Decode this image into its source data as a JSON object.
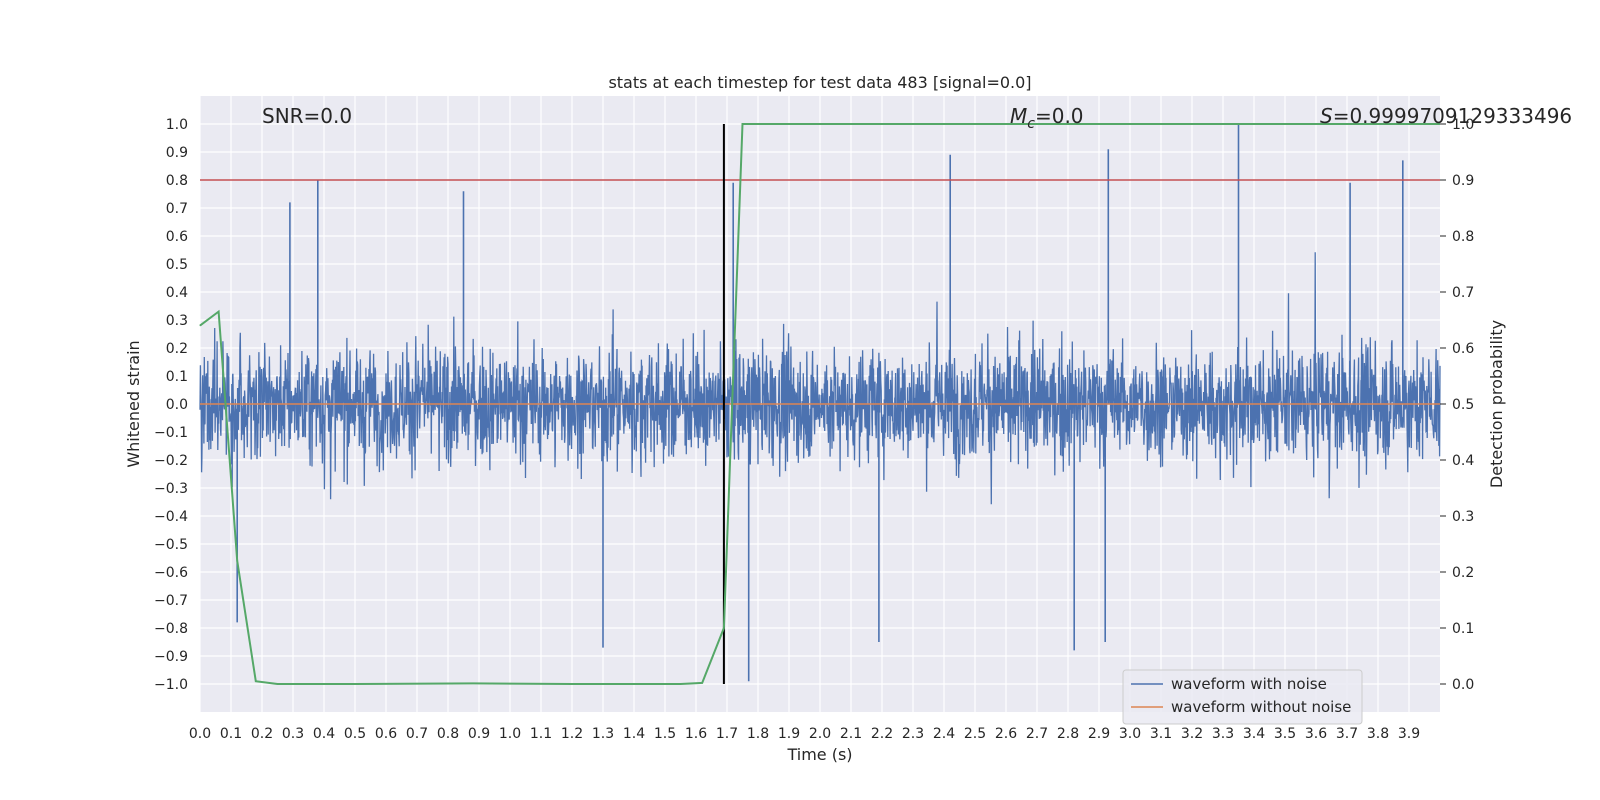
{
  "chart_data": {
    "type": "line",
    "title": "stats at each timestep for test data 483 [signal=0.0]",
    "xlabel": "Time (s)",
    "ylabel_left": "Whitened strain",
    "ylabel_right": "Detection probability",
    "xlim": [
      0.0,
      4.0
    ],
    "ylim_left": [
      -1.1,
      1.1
    ],
    "ylim_right": [
      -0.05,
      1.05
    ],
    "x_ticks": [
      "0.0",
      "0.1",
      "0.2",
      "0.3",
      "0.4",
      "0.5",
      "0.6",
      "0.7",
      "0.8",
      "0.9",
      "1.0",
      "1.1",
      "1.2",
      "1.3",
      "1.4",
      "1.5",
      "1.6",
      "1.7",
      "1.8",
      "1.9",
      "2.0",
      "2.1",
      "2.2",
      "2.3",
      "2.4",
      "2.5",
      "2.6",
      "2.7",
      "2.8",
      "2.9",
      "3.0",
      "3.1",
      "3.2",
      "3.3",
      "3.4",
      "3.5",
      "3.6",
      "3.7",
      "3.8",
      "3.9"
    ],
    "y_left_ticks": [
      "1.0",
      "0.9",
      "0.8",
      "0.7",
      "0.6",
      "0.5",
      "0.4",
      "0.3",
      "0.2",
      "0.1",
      "0.0",
      "−0.1",
      "−0.2",
      "−0.3",
      "−0.4",
      "−0.5",
      "−0.6",
      "−0.7",
      "−0.8",
      "−0.9",
      "−1.0"
    ],
    "y_right_ticks": [
      "1.0",
      "0.9",
      "0.8",
      "0.7",
      "0.6",
      "0.5",
      "0.4",
      "0.3",
      "0.2",
      "0.1",
      "0.0"
    ],
    "annotations": {
      "snr": "SNR=0.0",
      "mc_symbol": "M",
      "mc_sub": "c",
      "mc_value": "=0.0",
      "s_symbol": "S",
      "s_value": "=0.9999709129333496"
    },
    "threshold_line": {
      "y": 0.8,
      "color": "#c44e52"
    },
    "vertical_line": {
      "x": 1.69,
      "color": "#000000"
    },
    "noise_series": {
      "name": "waveform with noise",
      "color": "#4c72b0",
      "amplitude_range": [
        -1.0,
        1.0
      ],
      "notable_peaks": [
        {
          "x": 0.38,
          "y": 0.8
        },
        {
          "x": 0.29,
          "y": 0.72
        },
        {
          "x": 0.85,
          "y": 0.76
        },
        {
          "x": 1.72,
          "y": 0.79
        },
        {
          "x": 2.42,
          "y": 0.89
        },
        {
          "x": 2.93,
          "y": 0.91
        },
        {
          "x": 3.35,
          "y": 1.0
        },
        {
          "x": 3.88,
          "y": 0.87
        },
        {
          "x": 3.71,
          "y": 0.79
        },
        {
          "x": 1.77,
          "y": -0.99
        },
        {
          "x": 1.3,
          "y": -0.87
        },
        {
          "x": 2.82,
          "y": -0.88
        },
        {
          "x": 2.92,
          "y": -0.85
        },
        {
          "x": 0.12,
          "y": -0.78
        },
        {
          "x": 2.19,
          "y": -0.85
        }
      ]
    },
    "clean_series": {
      "name": "waveform without noise",
      "color": "#dd8452",
      "value": 0.0
    },
    "probability_series": {
      "name": "Detection probability",
      "color": "#55a868",
      "x": [
        0.0,
        0.06,
        0.12,
        0.18,
        0.25,
        0.5,
        0.88,
        1.2,
        1.55,
        1.62,
        1.69,
        1.75,
        4.0
      ],
      "y": [
        0.64,
        0.665,
        0.22,
        0.005,
        0.0,
        0.0,
        0.001,
        0.0,
        0.0,
        0.002,
        0.1,
        1.0,
        1.0
      ]
    },
    "legend": {
      "position": "lower-right",
      "entries": [
        {
          "label": "waveform with noise",
          "color": "#4c72b0"
        },
        {
          "label": "waveform without noise",
          "color": "#dd8452"
        }
      ]
    },
    "grid": true
  }
}
